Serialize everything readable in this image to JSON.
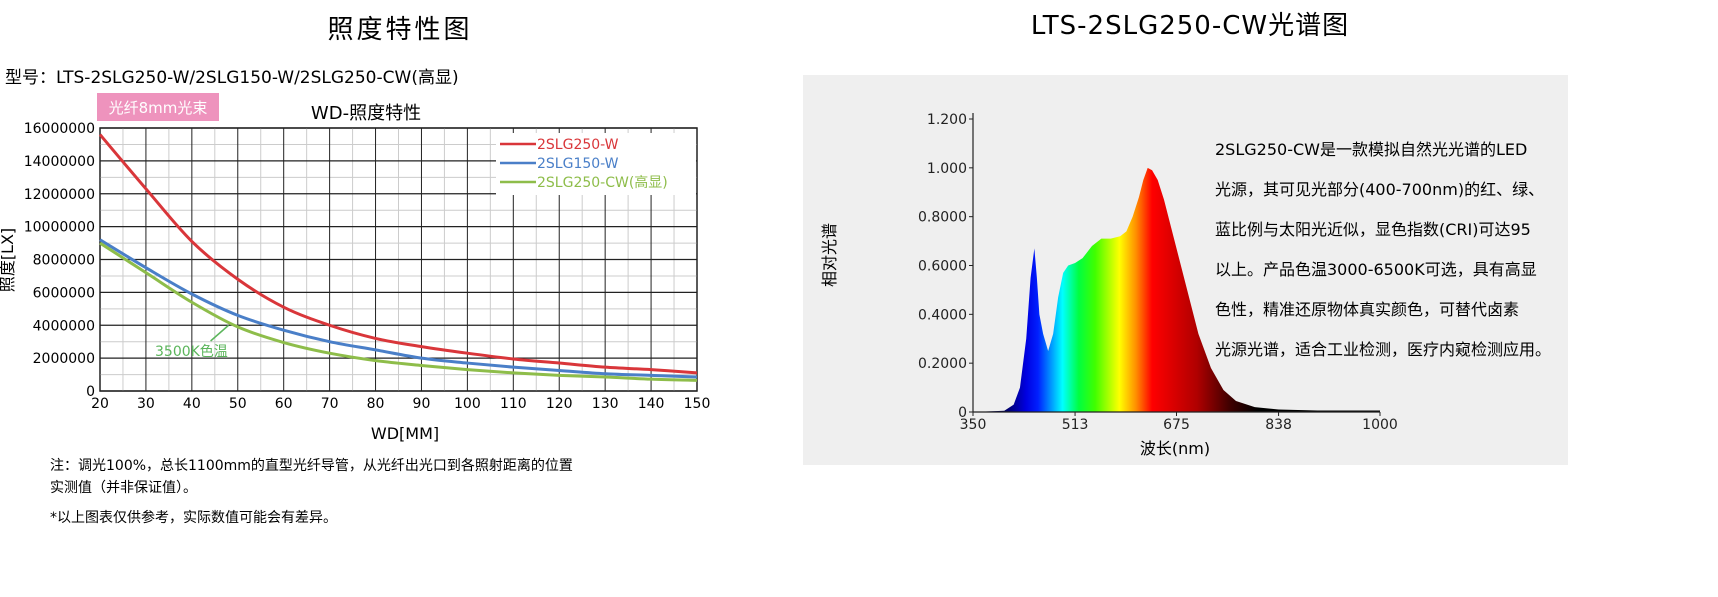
{
  "left": {
    "title": "照度特性图",
    "model": "型号：LTS-2SLG250-W/2SLG150-W/2SLG250-CW(高显)",
    "badge": "光纤8mm光束",
    "badge_color": "#ee93bd",
    "notes": [
      "注：调光100%，总长1100mm的直型光纤导管，从光纤出光口到各照射距离的位置",
      "实测值（并非保证值）。",
      "*以上图表仅供参考，实际数值可能会有差异。"
    ]
  },
  "right": {
    "title": "LTS-2SLG250-CW光谱图",
    "panel_color": "#efefef",
    "description": [
      "2SLG250-CW是一款模拟自然光光谱的LED",
      "光源，其可见光部分(400-700nm)的红、绿、",
      "蓝比例与太阳光近似，显色指数(CRI)可达95",
      "以上。产品色温3000-6500K可选，具有高显",
      "色性，精准还原物体真实颜色，可替代卤素",
      "光源光谱，适合工业检测，医疗内窥检测应用。"
    ]
  },
  "chart_data": [
    {
      "type": "line",
      "title": "WD-照度特性",
      "xlabel": "WD[MM]",
      "ylabel": "照度[LX]",
      "xlim": [
        20,
        150
      ],
      "ylim": [
        0,
        16000000
      ],
      "xticks": [
        "20",
        "30",
        "40",
        "50",
        "60",
        "70",
        "80",
        "90",
        "100",
        "110",
        "120",
        "130",
        "140",
        "150"
      ],
      "yticks": [
        "0",
        "2000000",
        "4000000",
        "6000000",
        "8000000",
        "10000000",
        "12000000",
        "14000000",
        "16000000"
      ],
      "grid": true,
      "legend": "top-right",
      "x": [
        20,
        30,
        40,
        50,
        60,
        70,
        80,
        90,
        100,
        110,
        120,
        130,
        140,
        150
      ],
      "series": [
        {
          "name": "2SLG250-W",
          "color": "#d9363a",
          "values": [
            15600000,
            12300000,
            9100000,
            6800000,
            5100000,
            4000000,
            3200000,
            2700000,
            2300000,
            1950000,
            1700000,
            1450000,
            1300000,
            1100000
          ]
        },
        {
          "name": "2SLG150-W",
          "color": "#4a7fc8",
          "values": [
            9200000,
            7500000,
            5900000,
            4600000,
            3700000,
            3000000,
            2500000,
            2000000,
            1700000,
            1450000,
            1250000,
            1050000,
            950000,
            850000
          ]
        },
        {
          "name": "2SLG250-CW(高显)",
          "color": "#8ebd4a",
          "values": [
            9000000,
            7200000,
            5400000,
            3900000,
            2950000,
            2300000,
            1850000,
            1550000,
            1300000,
            1100000,
            950000,
            850000,
            720000,
            650000
          ]
        }
      ],
      "annotations": [
        {
          "text": "3500K色温",
          "x": 48,
          "y": 4000000,
          "color": "#5bb55b"
        }
      ]
    },
    {
      "type": "area",
      "xlabel": "波长(nm)",
      "ylabel": "相对光谱",
      "xlim": [
        350,
        1000
      ],
      "ylim": [
        0,
        1.2
      ],
      "xticks": [
        "350",
        "513",
        "675",
        "838",
        "1000"
      ],
      "yticks": [
        "0",
        "0.2000",
        "0.4000",
        "0.6000",
        "0.8000",
        "1.000",
        "1.200"
      ],
      "grid": false,
      "x": [
        350,
        400,
        415,
        425,
        435,
        442,
        448,
        452,
        456,
        462,
        470,
        478,
        486,
        494,
        502,
        513,
        525,
        540,
        555,
        570,
        585,
        595,
        605,
        615,
        622,
        629,
        636,
        645,
        655,
        670,
        690,
        710,
        730,
        750,
        770,
        800,
        838,
        900,
        1000
      ],
      "values": [
        0,
        0.005,
        0.03,
        0.1,
        0.3,
        0.55,
        0.67,
        0.55,
        0.4,
        0.32,
        0.25,
        0.32,
        0.47,
        0.57,
        0.6,
        0.61,
        0.63,
        0.68,
        0.71,
        0.71,
        0.72,
        0.74,
        0.8,
        0.88,
        0.95,
        1.0,
        0.99,
        0.95,
        0.87,
        0.72,
        0.52,
        0.32,
        0.18,
        0.09,
        0.045,
        0.02,
        0.01,
        0.006,
        0.006
      ]
    }
  ]
}
